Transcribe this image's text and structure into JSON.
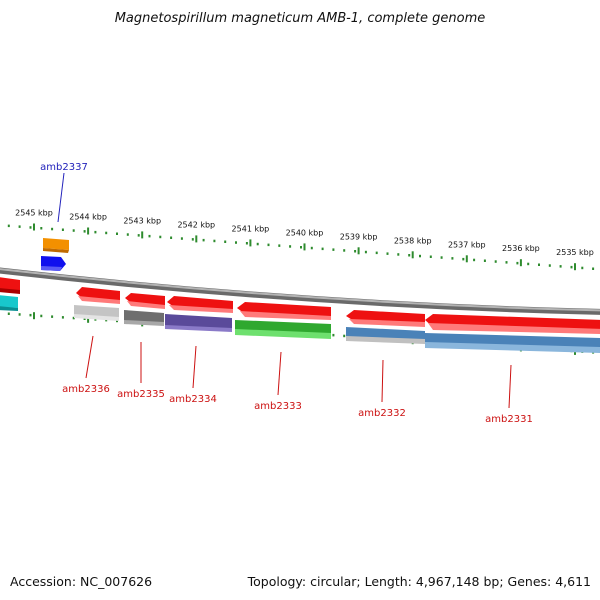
{
  "title": "Magnetospirillum magneticum AMB-1, complete genome",
  "accession": "Accession: NC_007626",
  "topology": "Topology: circular; Length: 4,967,148 bp; Genes: 4,611",
  "colors": {
    "backbone": "#8c8c8c",
    "tick": "#2e8b2e",
    "forward_label": "#2222bb",
    "reverse_label": "#cc1111",
    "gene_red": "#ee1111",
    "gene_orange": "#f39000",
    "gene_blue": "#1010ee",
    "gene_cyan": "#18c8cc",
    "gene_lightgray": "#c4c4c4",
    "gene_darkgray": "#6e6e6e",
    "gene_purple": "#5a4a9a",
    "gene_green": "#3cc43c",
    "gene_steelblue": "#4a82b8"
  },
  "ticks": [
    "2545 kbp",
    "2544 kbp",
    "2543 kbp",
    "2542 kbp",
    "2541 kbp",
    "2540 kbp",
    "2539 kbp",
    "2538 kbp",
    "2537 kbp",
    "2536 kbp",
    "2535 kbp"
  ],
  "genes": [
    {
      "label": "amb2337",
      "strand": "forward"
    },
    {
      "label": "amb2336",
      "strand": "reverse"
    },
    {
      "label": "amb2335",
      "strand": "reverse"
    },
    {
      "label": "amb2334",
      "strand": "reverse"
    },
    {
      "label": "amb2333",
      "strand": "reverse"
    },
    {
      "label": "amb2332",
      "strand": "reverse"
    },
    {
      "label": "amb2331",
      "strand": "reverse"
    }
  ]
}
